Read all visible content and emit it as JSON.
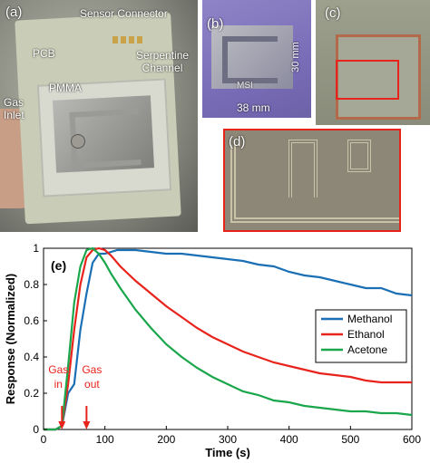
{
  "photos": {
    "a": {
      "label": "(a)",
      "annotations": {
        "sensor_connector": "Sensor Connector",
        "pcb": "PCB",
        "serpentine": "Serpentine\nChannel",
        "pmma": "PMMA",
        "gas_inlet": "Gas\nInlet"
      }
    },
    "b": {
      "label": "(b)",
      "height_dim": "30 mm",
      "width_dim": "38 mm",
      "stamp": "MSI"
    },
    "c": {
      "label": "(c)"
    },
    "d": {
      "label": "(d)"
    }
  },
  "chart_data": {
    "type": "line",
    "panel_label": "(e)",
    "xlabel": "Time (s)",
    "ylabel": "Response (Normalized)",
    "xlim": [
      0,
      600
    ],
    "ylim": [
      0,
      1
    ],
    "xticks": [
      0,
      100,
      200,
      300,
      400,
      500,
      600
    ],
    "yticks": [
      0,
      0.2,
      0.4,
      0.6,
      0.8,
      1
    ],
    "legend_position": "right",
    "annotations": {
      "gas_in": "Gas\nin",
      "gas_out": "Gas\nout",
      "gas_in_time": 30,
      "gas_out_time": 70
    },
    "series": [
      {
        "name": "Methanol",
        "color": "#1a6fb5",
        "x": [
          0,
          20,
          30,
          40,
          50,
          60,
          70,
          80,
          90,
          100,
          120,
          150,
          175,
          200,
          225,
          250,
          275,
          300,
          325,
          350,
          375,
          400,
          425,
          450,
          475,
          500,
          525,
          550,
          575,
          600
        ],
        "y": [
          0,
          0,
          0.02,
          0.2,
          0.25,
          0.55,
          0.75,
          0.92,
          0.97,
          0.97,
          0.99,
          0.99,
          0.98,
          0.97,
          0.97,
          0.96,
          0.95,
          0.94,
          0.93,
          0.91,
          0.9,
          0.87,
          0.85,
          0.84,
          0.82,
          0.8,
          0.78,
          0.78,
          0.75,
          0.74
        ]
      },
      {
        "name": "Ethanol",
        "color": "#e8231c",
        "x": [
          0,
          20,
          30,
          40,
          50,
          60,
          70,
          80,
          90,
          100,
          110,
          125,
          150,
          175,
          200,
          225,
          250,
          275,
          300,
          325,
          350,
          375,
          400,
          425,
          450,
          475,
          500,
          525,
          550,
          575,
          600
        ],
        "y": [
          0,
          0,
          0.02,
          0.25,
          0.55,
          0.8,
          0.95,
          0.99,
          1.0,
          0.99,
          0.96,
          0.9,
          0.82,
          0.75,
          0.68,
          0.62,
          0.56,
          0.51,
          0.47,
          0.43,
          0.4,
          0.37,
          0.35,
          0.33,
          0.31,
          0.3,
          0.29,
          0.27,
          0.26,
          0.26,
          0.26
        ]
      },
      {
        "name": "Acetone",
        "color": "#1aa64b",
        "x": [
          0,
          20,
          30,
          40,
          50,
          60,
          70,
          80,
          90,
          100,
          110,
          125,
          150,
          175,
          200,
          225,
          250,
          275,
          300,
          325,
          350,
          375,
          400,
          425,
          450,
          475,
          500,
          525,
          550,
          575,
          600
        ],
        "y": [
          0,
          0,
          0.02,
          0.35,
          0.7,
          0.9,
          0.99,
          1.0,
          0.97,
          0.92,
          0.86,
          0.78,
          0.66,
          0.56,
          0.47,
          0.4,
          0.34,
          0.29,
          0.25,
          0.21,
          0.19,
          0.16,
          0.15,
          0.13,
          0.12,
          0.11,
          0.1,
          0.1,
          0.09,
          0.09,
          0.08
        ]
      }
    ]
  }
}
